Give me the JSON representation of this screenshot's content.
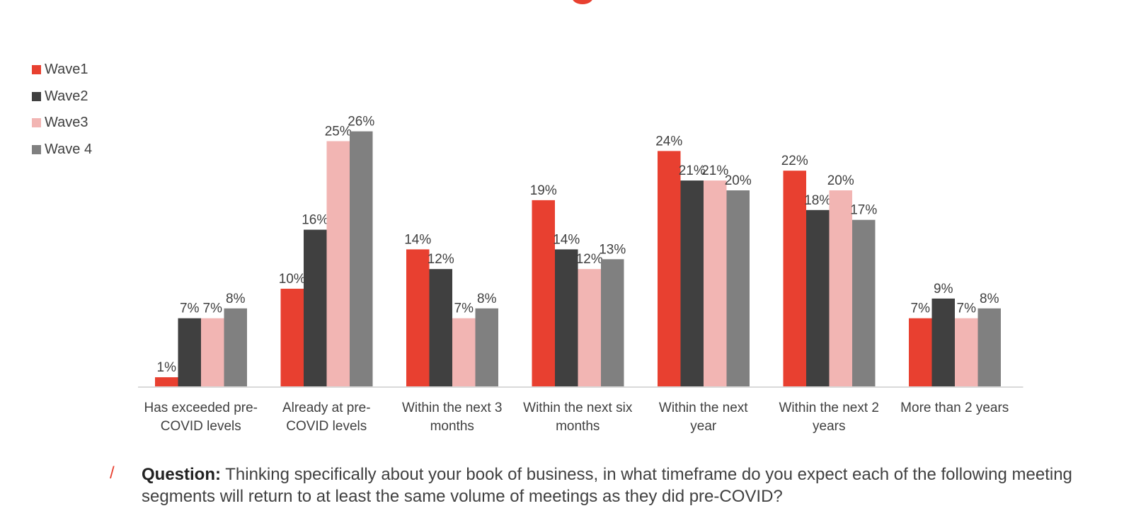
{
  "chart_data": {
    "type": "bar",
    "title": "",
    "xlabel": "",
    "ylabel": "",
    "ylim": [
      0,
      30
    ],
    "grid": false,
    "legend_position": "top-left",
    "value_suffix": "%",
    "categories": [
      [
        "Has exceeded pre-",
        "COVID levels"
      ],
      [
        "Already at pre-",
        "COVID levels"
      ],
      [
        "Within the next 3",
        "months"
      ],
      [
        "Within the next six",
        "months"
      ],
      [
        "Within the next",
        "year"
      ],
      [
        "Within the next 2",
        "years"
      ],
      [
        "More than 2 years"
      ]
    ],
    "series": [
      {
        "name": "Wave1",
        "color": "#e84030",
        "values": [
          1,
          10,
          14,
          19,
          24,
          22,
          7
        ]
      },
      {
        "name": "Wave2",
        "color": "#404040",
        "values": [
          7,
          16,
          12,
          14,
          21,
          18,
          9
        ]
      },
      {
        "name": "Wave3",
        "color": "#f2b5b3",
        "values": [
          7,
          25,
          7,
          12,
          21,
          20,
          7
        ]
      },
      {
        "name": "Wave 4",
        "color": "#808080",
        "values": [
          8,
          26,
          8,
          13,
          20,
          17,
          8
        ]
      }
    ]
  },
  "footer": {
    "slash": "/",
    "question_label": "Question:",
    "question_text": " Thinking specifically about your book of business, in what timeframe do you expect each of the following meeting segments will return to at least the same volume of meetings as they did pre-COVID?"
  },
  "accent_color": "#e84030"
}
